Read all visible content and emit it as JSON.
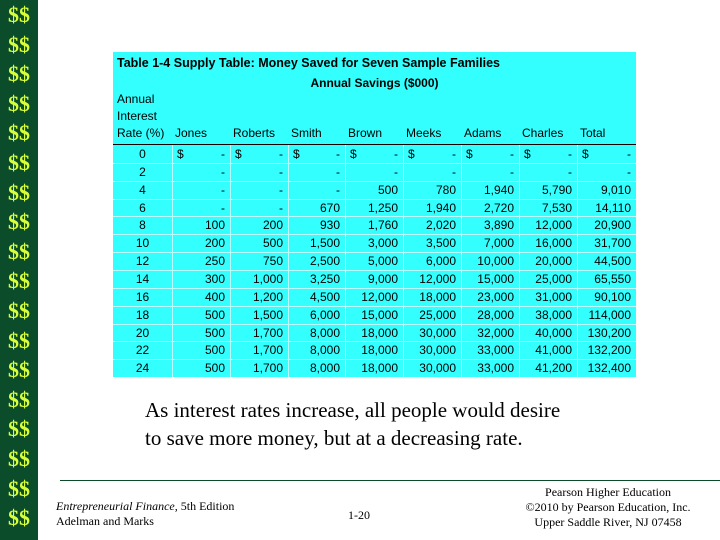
{
  "sidebar": [
    "$$",
    "$$",
    "$$",
    "$$",
    "$$",
    "$$",
    "$$",
    "$$",
    "$$",
    "$$",
    "$$",
    "$$",
    "$$",
    "$$",
    "$$",
    "$$",
    "$$",
    "$$"
  ],
  "table": {
    "title": "Table 1-4 Supply Table: Money Saved for Seven Sample Families",
    "subtitle": "Annual Savings ($000)",
    "rate_header": [
      "Annual",
      "Interest",
      "Rate (%)"
    ],
    "columns": [
      "Jones",
      "Roberts",
      "Smith",
      "Brown",
      "Meeks",
      "Adams",
      "Charles",
      "Total"
    ],
    "rows": [
      [
        "0",
        [
          "$",
          "-"
        ],
        [
          "$",
          "-"
        ],
        [
          "$",
          "-"
        ],
        [
          "$",
          "-"
        ],
        [
          "$",
          "-"
        ],
        [
          "$",
          "-"
        ],
        [
          "$",
          "-"
        ],
        [
          "$",
          "-"
        ]
      ],
      [
        "2",
        "-",
        "-",
        "-",
        "-",
        "-",
        "-",
        "-",
        "-"
      ],
      [
        "4",
        "-",
        "-",
        "-",
        "500",
        "780",
        "1,940",
        "5,790",
        "9,010"
      ],
      [
        "6",
        "-",
        "-",
        "670",
        "1,250",
        "1,940",
        "2,720",
        "7,530",
        "14,110"
      ],
      [
        "8",
        "100",
        "200",
        "930",
        "1,760",
        "2,020",
        "3,890",
        "12,000",
        "20,900"
      ],
      [
        "10",
        "200",
        "500",
        "1,500",
        "3,000",
        "3,500",
        "7,000",
        "16,000",
        "31,700"
      ],
      [
        "12",
        "250",
        "750",
        "2,500",
        "5,000",
        "6,000",
        "10,000",
        "20,000",
        "44,500"
      ],
      [
        "14",
        "300",
        "1,000",
        "3,250",
        "9,000",
        "12,000",
        "15,000",
        "25,000",
        "65,550"
      ],
      [
        "16",
        "400",
        "1,200",
        "4,500",
        "12,000",
        "18,000",
        "23,000",
        "31,000",
        "90,100"
      ],
      [
        "18",
        "500",
        "1,500",
        "6,000",
        "15,000",
        "25,000",
        "28,000",
        "38,000",
        "114,000"
      ],
      [
        "20",
        "500",
        "1,700",
        "8,000",
        "18,000",
        "30,000",
        "32,000",
        "40,000",
        "130,200"
      ],
      [
        "22",
        "500",
        "1,700",
        "8,000",
        "18,000",
        "30,000",
        "33,000",
        "41,000",
        "132,200"
      ],
      [
        "24",
        "500",
        "1,700",
        "8,000",
        "18,000",
        "30,000",
        "33,000",
        "41,200",
        "132,400"
      ]
    ]
  },
  "caption": [
    "As interest rates increase, all people would desire",
    "to save more money, but at a decreasing rate."
  ],
  "footer": {
    "book_title": "Entrepreneurial Finance,",
    "edition": "5th Edition",
    "authors": "Adelman and Marks",
    "page": "1-20",
    "publisher": [
      "Pearson Higher Education",
      "©2010 by Pearson Education, Inc.",
      "Upper Saddle River, NJ 07458"
    ]
  }
}
